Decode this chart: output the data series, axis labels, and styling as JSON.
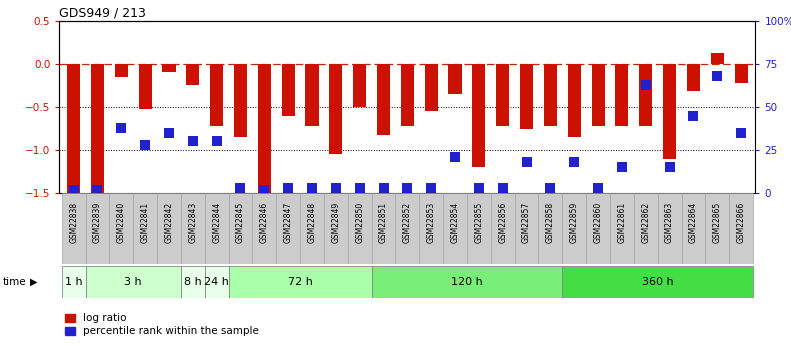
{
  "title": "GDS949 / 213",
  "samples": [
    "GSM22838",
    "GSM22839",
    "GSM22840",
    "GSM22841",
    "GSM22842",
    "GSM22843",
    "GSM22844",
    "GSM22845",
    "GSM22846",
    "GSM22847",
    "GSM22848",
    "GSM22849",
    "GSM22850",
    "GSM22851",
    "GSM22852",
    "GSM22853",
    "GSM22854",
    "GSM22855",
    "GSM22856",
    "GSM22857",
    "GSM22858",
    "GSM22859",
    "GSM22860",
    "GSM22861",
    "GSM22862",
    "GSM22863",
    "GSM22864",
    "GSM22865",
    "GSM22866"
  ],
  "log_ratio": [
    -1.5,
    -1.5,
    -0.15,
    -0.52,
    -0.1,
    -0.25,
    -0.72,
    -0.85,
    -1.5,
    -0.6,
    -0.72,
    -1.05,
    -0.5,
    -0.82,
    -0.72,
    -0.55,
    -0.35,
    -1.2,
    -0.72,
    -0.75,
    -0.72,
    -0.85,
    -0.72,
    -0.72,
    -0.72,
    -1.1,
    -0.32,
    0.12,
    -0.22
  ],
  "percentile_rank": [
    2,
    2,
    38,
    28,
    35,
    30,
    30,
    3,
    2,
    3,
    3,
    3,
    3,
    3,
    3,
    3,
    21,
    3,
    3,
    18,
    3,
    18,
    3,
    15,
    63,
    15,
    45,
    68,
    35
  ],
  "time_groups": [
    {
      "label": "1 h",
      "start": 0,
      "end": 1
    },
    {
      "label": "3 h",
      "start": 1,
      "end": 5
    },
    {
      "label": "8 h",
      "start": 5,
      "end": 6
    },
    {
      "label": "24 h",
      "start": 6,
      "end": 7
    },
    {
      "label": "72 h",
      "start": 7,
      "end": 13
    },
    {
      "label": "120 h",
      "start": 13,
      "end": 21
    },
    {
      "label": "360 h",
      "start": 21,
      "end": 29
    }
  ],
  "time_group_colors": [
    "#e8ffe8",
    "#ccffcc",
    "#e8ffe8",
    "#e8ffe8",
    "#aaffaa",
    "#77ee77",
    "#44dd44"
  ],
  "bar_color": "#cc1100",
  "dot_color": "#2222cc",
  "dashed_color": "#cc2200",
  "ylim_left": [
    -1.5,
    0.5
  ],
  "ylim_right": [
    0,
    100
  ],
  "yticks_left": [
    -1.5,
    -1.0,
    -0.5,
    0.0,
    0.5
  ],
  "yticks_right": [
    0,
    25,
    50,
    75,
    100
  ],
  "ytick_labels_right": [
    "0",
    "25",
    "50",
    "75",
    "100%"
  ],
  "hlines": [
    -0.5,
    -1.0
  ],
  "bar_width": 0.55,
  "dot_size": 45,
  "sample_box_color": "#cccccc",
  "sample_box_edge": "#999999"
}
